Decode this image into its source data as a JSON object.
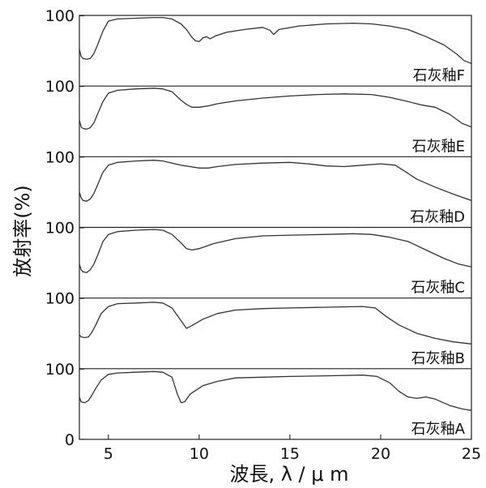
{
  "chart_data": {
    "type": "line",
    "xlabel": "波長, λ / μ m",
    "ylabel": "放射率(%)",
    "xlim": [
      3.4,
      25
    ],
    "ylim": [
      0,
      100
    ],
    "x_ticks": [
      {
        "value": 5,
        "label": "5"
      },
      {
        "value": 10,
        "label": "10"
      },
      {
        "value": 15,
        "label": "15"
      },
      {
        "value": 20,
        "label": "20"
      },
      {
        "value": 25,
        "label": "25"
      }
    ],
    "y_tick_labels": {
      "top": "100",
      "bottom": "0"
    },
    "line_color": "#333333",
    "panels": [
      {
        "label": "石灰釉F",
        "points": [
          [
            3.4,
            52
          ],
          [
            3.5,
            42
          ],
          [
            3.6,
            39
          ],
          [
            3.8,
            38
          ],
          [
            4.0,
            39
          ],
          [
            4.2,
            46
          ],
          [
            4.4,
            58
          ],
          [
            4.7,
            78
          ],
          [
            5.0,
            92
          ],
          [
            5.5,
            95
          ],
          [
            6.5,
            96
          ],
          [
            7.5,
            97
          ],
          [
            8.0,
            97
          ],
          [
            8.5,
            95
          ],
          [
            9.0,
            88
          ],
          [
            9.3,
            80
          ],
          [
            9.6,
            69
          ],
          [
            9.8,
            64
          ],
          [
            10.0,
            63
          ],
          [
            10.2,
            68
          ],
          [
            10.4,
            70
          ],
          [
            10.6,
            67
          ],
          [
            10.9,
            71
          ],
          [
            11.5,
            76
          ],
          [
            12.5,
            80
          ],
          [
            13.5,
            83
          ],
          [
            13.9,
            79
          ],
          [
            14.1,
            73
          ],
          [
            14.4,
            80
          ],
          [
            15.5,
            85
          ],
          [
            17.0,
            88
          ],
          [
            18.5,
            89
          ],
          [
            19.5,
            88
          ],
          [
            20.5,
            85
          ],
          [
            21.5,
            80
          ],
          [
            22.5,
            70
          ],
          [
            23.5,
            58
          ],
          [
            24.2,
            45
          ],
          [
            24.6,
            36
          ],
          [
            25.0,
            32
          ]
        ]
      },
      {
        "label": "石灰釉E",
        "points": [
          [
            3.4,
            52
          ],
          [
            3.5,
            42
          ],
          [
            3.6,
            40
          ],
          [
            3.8,
            39
          ],
          [
            4.0,
            41
          ],
          [
            4.2,
            48
          ],
          [
            4.4,
            60
          ],
          [
            4.7,
            78
          ],
          [
            5.0,
            90
          ],
          [
            5.5,
            94
          ],
          [
            6.5,
            96
          ],
          [
            7.5,
            97
          ],
          [
            8.0,
            96
          ],
          [
            8.5,
            92
          ],
          [
            9.0,
            80
          ],
          [
            9.3,
            74
          ],
          [
            9.6,
            70
          ],
          [
            10.0,
            70
          ],
          [
            10.5,
            72
          ],
          [
            11.0,
            75
          ],
          [
            12.0,
            79
          ],
          [
            13.5,
            83
          ],
          [
            15.0,
            86
          ],
          [
            16.5,
            88
          ],
          [
            18.0,
            89
          ],
          [
            19.5,
            88
          ],
          [
            20.5,
            84
          ],
          [
            21.5,
            78
          ],
          [
            22.3,
            73
          ],
          [
            23.0,
            70
          ],
          [
            23.8,
            60
          ],
          [
            24.5,
            47
          ],
          [
            25.0,
            42
          ]
        ]
      },
      {
        "label": "石灰釉D",
        "points": [
          [
            3.4,
            50
          ],
          [
            3.5,
            42
          ],
          [
            3.6,
            38
          ],
          [
            3.8,
            37
          ],
          [
            4.0,
            40
          ],
          [
            4.2,
            48
          ],
          [
            4.4,
            60
          ],
          [
            4.7,
            78
          ],
          [
            5.0,
            88
          ],
          [
            5.5,
            92
          ],
          [
            6.5,
            94
          ],
          [
            7.5,
            95
          ],
          [
            8.0,
            94
          ],
          [
            8.5,
            91
          ],
          [
            9.0,
            88
          ],
          [
            9.5,
            86
          ],
          [
            10.0,
            84
          ],
          [
            10.5,
            84
          ],
          [
            11.0,
            86
          ],
          [
            12.0,
            89
          ],
          [
            13.5,
            91
          ],
          [
            15.0,
            92
          ],
          [
            16.0,
            90
          ],
          [
            17.0,
            87
          ],
          [
            18.0,
            86
          ],
          [
            19.0,
            88
          ],
          [
            20.0,
            90
          ],
          [
            20.8,
            88
          ],
          [
            21.3,
            80
          ],
          [
            22.0,
            68
          ],
          [
            23.0,
            57
          ],
          [
            24.0,
            47
          ],
          [
            25.0,
            38
          ]
        ]
      },
      {
        "label": "石灰釉C",
        "points": [
          [
            3.4,
            48
          ],
          [
            3.5,
            40
          ],
          [
            3.6,
            37
          ],
          [
            3.8,
            36
          ],
          [
            4.0,
            40
          ],
          [
            4.2,
            48
          ],
          [
            4.4,
            60
          ],
          [
            4.7,
            80
          ],
          [
            5.0,
            90
          ],
          [
            5.5,
            94
          ],
          [
            6.5,
            96
          ],
          [
            7.5,
            97
          ],
          [
            8.0,
            96
          ],
          [
            8.5,
            90
          ],
          [
            9.0,
            78
          ],
          [
            9.3,
            70
          ],
          [
            9.6,
            68
          ],
          [
            10.0,
            70
          ],
          [
            10.8,
            77
          ],
          [
            12.0,
            84
          ],
          [
            13.5,
            88
          ],
          [
            15.0,
            89
          ],
          [
            17.0,
            90
          ],
          [
            18.5,
            91
          ],
          [
            19.5,
            90
          ],
          [
            20.5,
            86
          ],
          [
            21.5,
            80
          ],
          [
            22.5,
            68
          ],
          [
            23.5,
            56
          ],
          [
            24.3,
            48
          ],
          [
            25.0,
            44
          ]
        ]
      },
      {
        "label": "石灰釉B",
        "points": [
          [
            3.4,
            48
          ],
          [
            3.5,
            45
          ],
          [
            3.7,
            44
          ],
          [
            3.9,
            45
          ],
          [
            4.1,
            52
          ],
          [
            4.3,
            62
          ],
          [
            4.6,
            78
          ],
          [
            5.0,
            88
          ],
          [
            5.5,
            92
          ],
          [
            6.5,
            93
          ],
          [
            7.5,
            94
          ],
          [
            8.0,
            93
          ],
          [
            8.5,
            86
          ],
          [
            9.0,
            68
          ],
          [
            9.3,
            57
          ],
          [
            9.6,
            61
          ],
          [
            10.2,
            70
          ],
          [
            11.0,
            78
          ],
          [
            12.0,
            83
          ],
          [
            13.5,
            85
          ],
          [
            15.0,
            86
          ],
          [
            17.0,
            87
          ],
          [
            19.0,
            88
          ],
          [
            19.7,
            86
          ],
          [
            20.3,
            74
          ],
          [
            21.0,
            62
          ],
          [
            22.0,
            50
          ],
          [
            23.0,
            43
          ],
          [
            24.0,
            38
          ],
          [
            25.0,
            35
          ]
        ]
      },
      {
        "label": "石灰釉A",
        "points": [
          [
            3.4,
            60
          ],
          [
            3.5,
            53
          ],
          [
            3.7,
            52
          ],
          [
            3.9,
            55
          ],
          [
            4.1,
            63
          ],
          [
            4.3,
            72
          ],
          [
            4.6,
            84
          ],
          [
            5.0,
            92
          ],
          [
            5.5,
            94
          ],
          [
            6.5,
            95
          ],
          [
            7.5,
            96
          ],
          [
            8.0,
            95
          ],
          [
            8.5,
            88
          ],
          [
            8.8,
            64
          ],
          [
            9.0,
            52
          ],
          [
            9.2,
            53
          ],
          [
            9.5,
            64
          ],
          [
            10.2,
            76
          ],
          [
            11.0,
            82
          ],
          [
            12.0,
            87
          ],
          [
            13.5,
            88
          ],
          [
            15.0,
            89
          ],
          [
            17.0,
            90
          ],
          [
            19.0,
            91
          ],
          [
            19.8,
            89
          ],
          [
            20.5,
            80
          ],
          [
            21.0,
            68
          ],
          [
            21.5,
            60
          ],
          [
            22.0,
            58
          ],
          [
            22.5,
            60
          ],
          [
            23.0,
            57
          ],
          [
            23.8,
            48
          ],
          [
            24.5,
            43
          ],
          [
            25.0,
            41
          ]
        ]
      }
    ]
  }
}
